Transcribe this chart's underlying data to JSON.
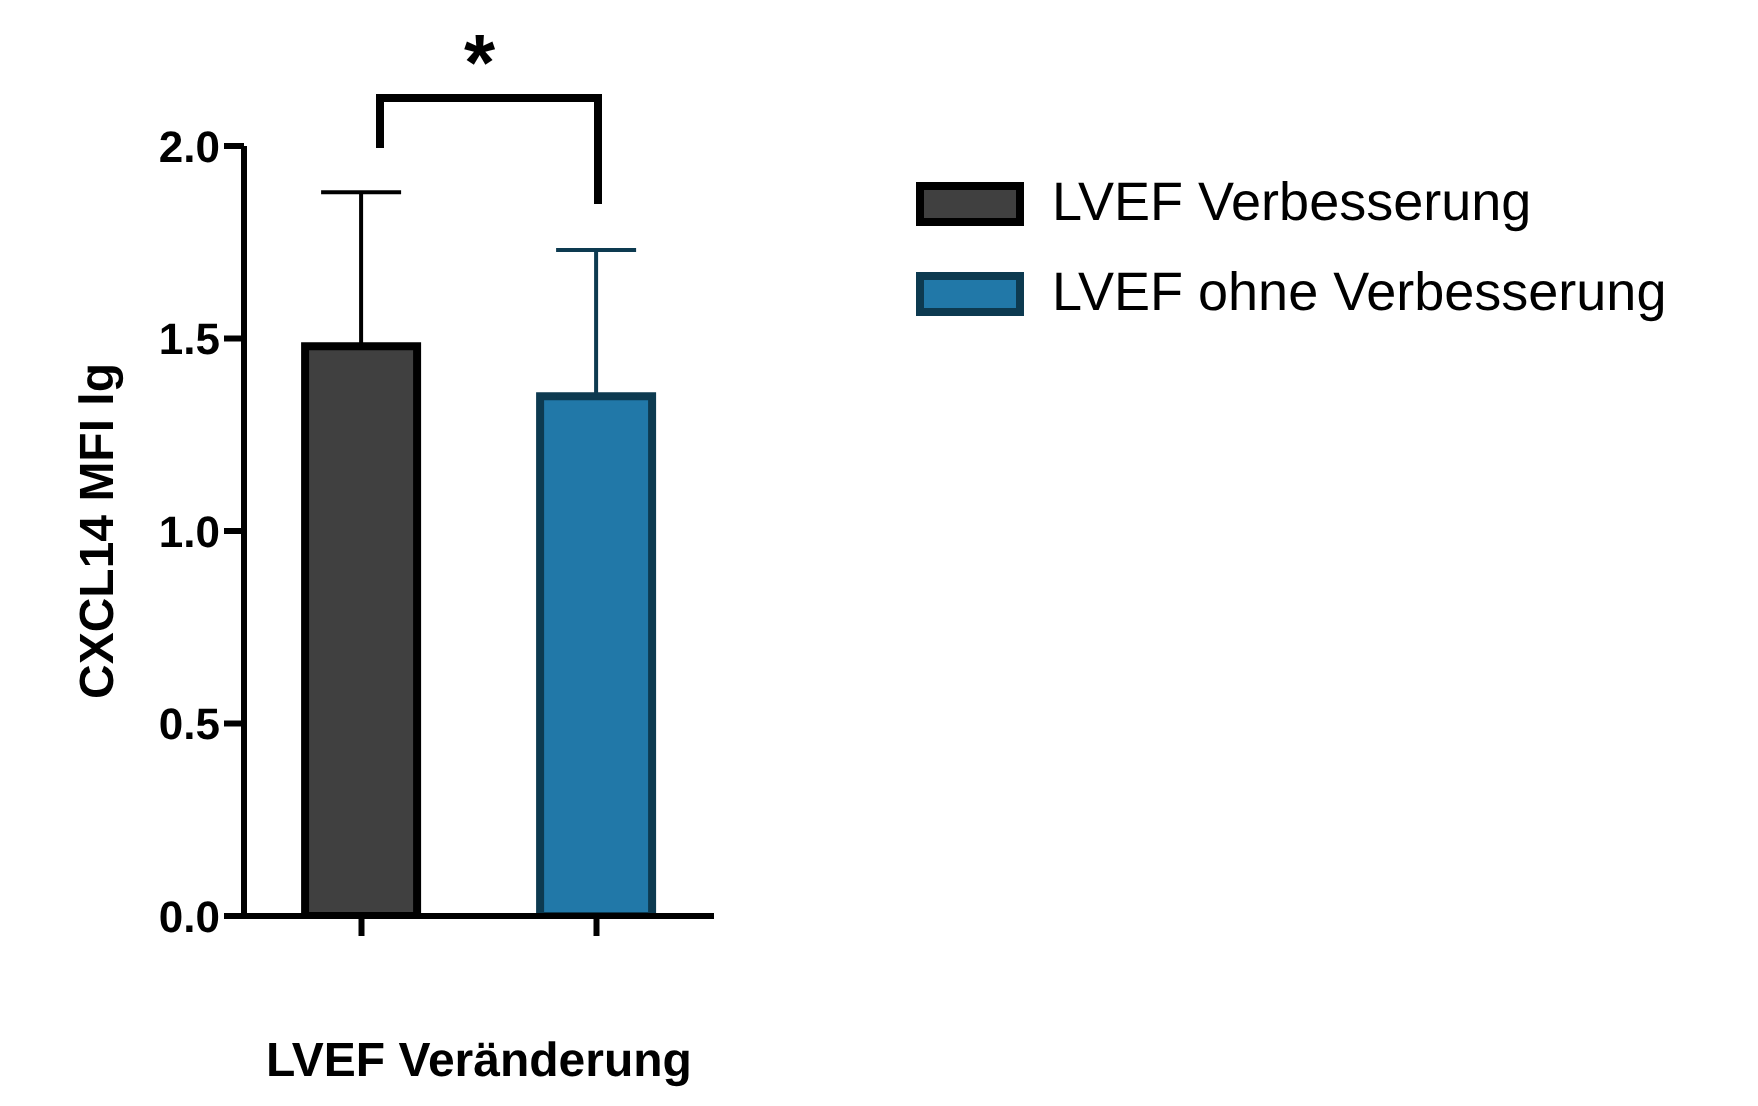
{
  "chart_data": {
    "type": "bar",
    "xlabel": "LVEF Veränderung",
    "ylabel": "CXCL14 MFI lg",
    "categories": [
      null,
      null
    ],
    "series": [
      {
        "name": "LVEF Verbesserung",
        "color": "#404040",
        "values": [
          1.48,
          null
        ],
        "errors": [
          [
            1.48,
            1.88
          ],
          null
        ]
      },
      {
        "name": "LVEF ohne Verbesserung",
        "color": "#2178a8",
        "values": [
          null,
          1.35
        ],
        "errors": [
          null,
          [
            1.35,
            1.73
          ]
        ]
      }
    ],
    "ylim": [
      0,
      2
    ],
    "yticks": [
      {
        "value": 0,
        "label": "0.0"
      },
      {
        "value": 0.5,
        "label": "0.5"
      },
      {
        "value": 1,
        "label": "1.0"
      },
      {
        "value": 1.5,
        "label": "1.5"
      },
      {
        "value": 2,
        "label": "2.0"
      }
    ],
    "annotations": [
      "*"
    ],
    "legend": "top right",
    "grid": false
  }
}
